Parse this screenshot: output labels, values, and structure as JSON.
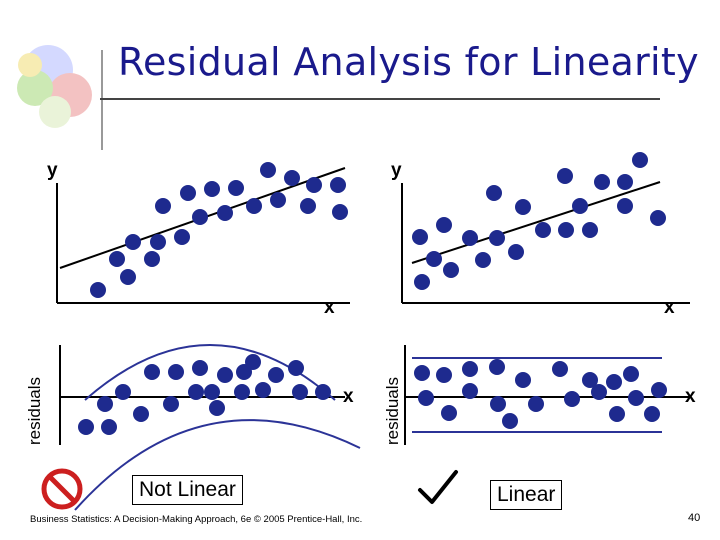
{
  "title": "Residual Analysis for Linearity",
  "left": {
    "y_label": "y",
    "x_label": "x",
    "residuals_label": "residuals",
    "residual_x_label": "x",
    "verdict": "Not Linear"
  },
  "right": {
    "y_label": "y",
    "x_label": "x",
    "residuals_label": "residuals",
    "residual_x_label": "x",
    "verdict": "Linear"
  },
  "footer": "Business Statistics: A Decision-Making Approach, 6e © 2005 Prentice-Hall, Inc.",
  "page_number": "40",
  "colors": {
    "title": "#1a1a8c",
    "dot": "#1e2a8e",
    "band": "#2b3397",
    "no_sign": "#cc1f1f"
  },
  "icons": [
    "no-sign-icon",
    "checkmark-icon"
  ]
}
